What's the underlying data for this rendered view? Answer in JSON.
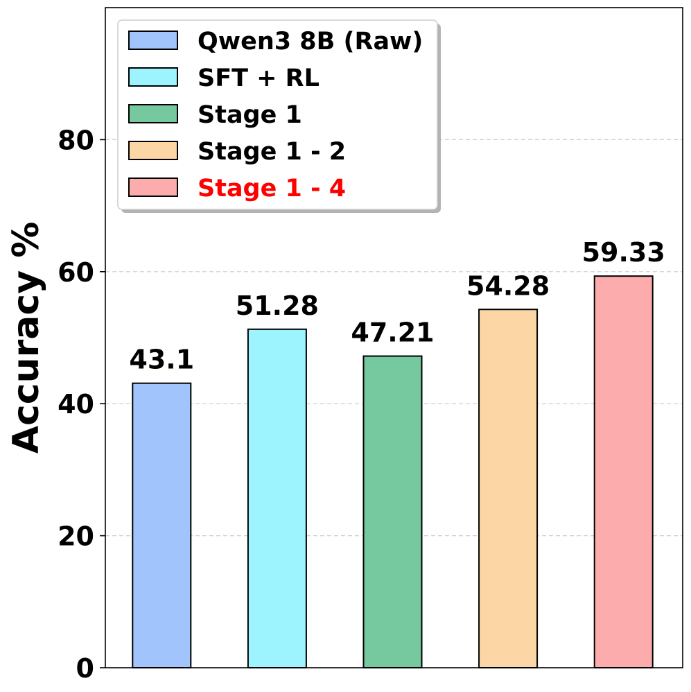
{
  "chart_data": {
    "type": "bar",
    "categories": [
      "Qwen3 8B (Raw)",
      "SFT + RL",
      "Stage 1",
      "Stage 1 - 2",
      "Stage 1 - 4"
    ],
    "values": [
      43.1,
      51.28,
      47.21,
      54.28,
      59.33
    ],
    "value_labels": [
      "43.1",
      "51.28",
      "47.21",
      "54.28",
      "59.33"
    ],
    "colors": [
      "#a1c4fd",
      "#9df3fe",
      "#76c89e",
      "#fdd6a5",
      "#fcacac"
    ],
    "legend_text_colors": [
      "#000000",
      "#000000",
      "#000000",
      "#000000",
      "#ff0000"
    ],
    "xlabel": "",
    "ylabel": "Accuracy %",
    "ylim": [
      0,
      100
    ],
    "yticks": [
      0,
      20,
      40,
      60,
      80
    ],
    "ytick_labels": [
      "0",
      "20",
      "40",
      "60",
      "80"
    ],
    "gridlines": [
      20,
      40,
      60,
      80
    ],
    "grid": true,
    "legend_position": "top-left"
  }
}
